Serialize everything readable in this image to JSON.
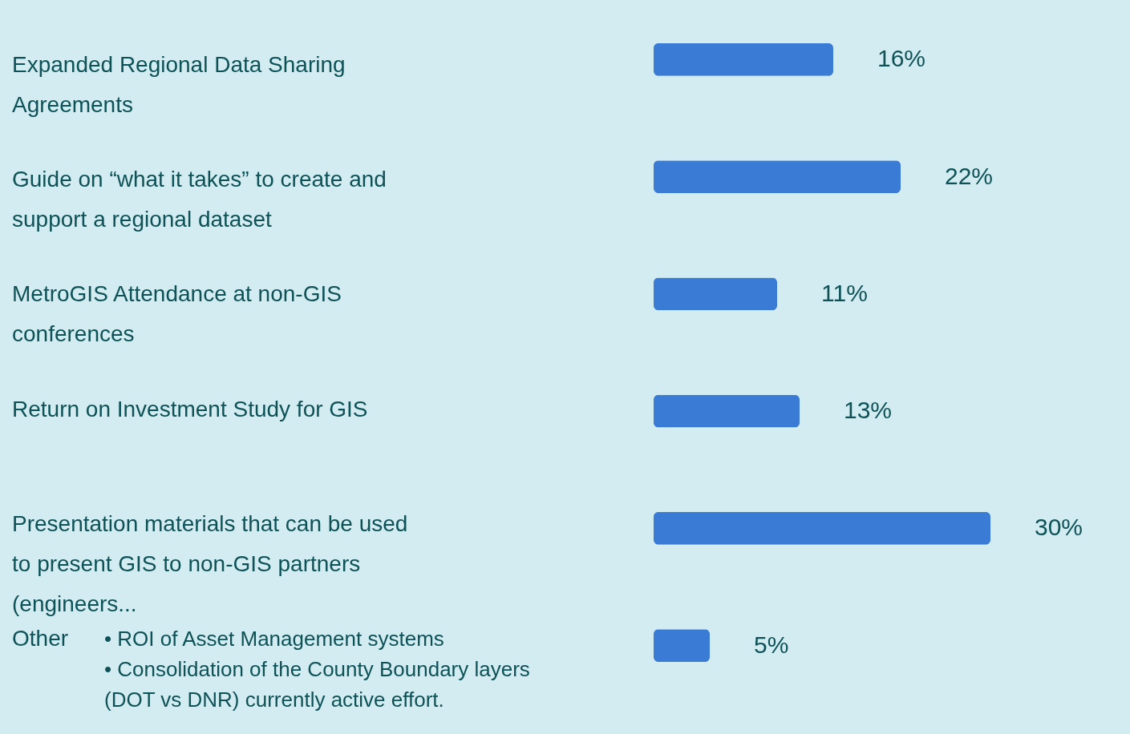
{
  "chart_data": {
    "type": "bar",
    "orientation": "horizontal",
    "categories": [
      "Expanded Regional Data Sharing Agreements",
      "Guide on “what it takes” to create and support a regional dataset",
      "MetroGIS Attendance at non-GIS conferences",
      "Return on Investment Study for GIS",
      "Presentation materials that can be used to present GIS to non-GIS partners (engineers...",
      "Other"
    ],
    "values": [
      16,
      22,
      11,
      13,
      30,
      5
    ],
    "value_labels": [
      "16%",
      "22%",
      "11%",
      "13%",
      "30%",
      "5%"
    ],
    "color": "#3a7bd5",
    "annotations": [
      "• ROI of Asset Management systems",
      "• Consolidation of the County Boundary layers (DOT vs DNR) currently active effort."
    ]
  }
}
